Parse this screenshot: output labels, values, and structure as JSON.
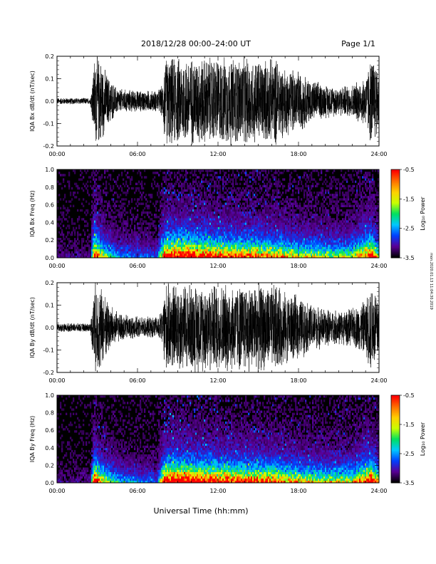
{
  "header": {
    "title": "2018/12/28  00:00–24:00 UT",
    "page": "Page 1/1"
  },
  "side_note": "mon.2020.01.13 11:04:30.2019",
  "xlabel": "Universal Time (hh:mm)",
  "colorbar_label": "Log₁₀ Power",
  "colors": {
    "trace": "#000000",
    "background": "#ffffff",
    "colormap": [
      "#000000",
      "#5a0096",
      "#0040ff",
      "#00c8ff",
      "#00e060",
      "#c8ff00",
      "#ffd000",
      "#ff7000",
      "#ff0000"
    ]
  },
  "chart_data": [
    {
      "type": "line",
      "title": "",
      "ylabel": "IQA Bx dB/dt (nT/sec)",
      "xlabel": "",
      "xlim": [
        0,
        24
      ],
      "ylim": [
        -0.2,
        0.2
      ],
      "x_ticks": [
        "00:00",
        "06:00",
        "12:00",
        "18:00",
        "24:00"
      ],
      "y_ticks": [
        "-0.2",
        "-0.1",
        "0.0",
        "0.1",
        "0.2"
      ],
      "grid": false,
      "activity_envelope": {
        "x_hours": [
          0,
          1,
          2.5,
          2.8,
          3.2,
          3.8,
          4.5,
          6,
          7.5,
          7.9,
          8.0,
          8.2,
          10,
          12,
          14,
          15,
          16,
          16.3,
          17,
          18,
          19,
          20,
          21,
          22,
          23,
          23.4,
          23.6,
          24
        ],
        "amplitude": [
          0.015,
          0.015,
          0.015,
          0.21,
          0.21,
          0.12,
          0.06,
          0.05,
          0.05,
          0.08,
          0.21,
          0.21,
          0.21,
          0.21,
          0.21,
          0.2,
          0.2,
          0.21,
          0.16,
          0.15,
          0.1,
          0.08,
          0.07,
          0.08,
          0.12,
          0.21,
          0.21,
          0.15
        ]
      }
    },
    {
      "type": "heatmap",
      "title": "",
      "ylabel": "IQA Bx Freq (Hz)",
      "xlabel": "",
      "xlim": [
        0,
        24
      ],
      "ylim": [
        0,
        1.0
      ],
      "x_ticks": [
        "00:00",
        "06:00",
        "12:00",
        "18:00",
        "24:00"
      ],
      "y_ticks": [
        "0.0",
        "0.2",
        "0.4",
        "0.6",
        "0.8",
        "1.0"
      ],
      "colorbar": {
        "label": "Log₁₀ Power",
        "range": [
          -3.5,
          -0.5
        ],
        "ticks": [
          "-0.5",
          "-1.5",
          "-2.5",
          "-3.5"
        ]
      },
      "activity_envelope": {
        "x_hours": [
          0,
          2.5,
          2.8,
          3.2,
          4.5,
          7.5,
          8.0,
          8.5,
          10,
          12,
          14,
          16,
          18,
          20,
          22,
          23.4,
          24
        ],
        "intensity": [
          0.05,
          0.05,
          0.9,
          0.5,
          0.2,
          0.15,
          0.75,
          0.85,
          0.8,
          0.7,
          0.65,
          0.6,
          0.45,
          0.4,
          0.4,
          0.8,
          0.4
        ]
      }
    },
    {
      "type": "line",
      "title": "",
      "ylabel": "IQA By dB/dt (nT/sec)",
      "xlabel": "",
      "xlim": [
        0,
        24
      ],
      "ylim": [
        -0.2,
        0.2
      ],
      "x_ticks": [
        "00:00",
        "06:00",
        "12:00",
        "18:00",
        "24:00"
      ],
      "y_ticks": [
        "-0.2",
        "-0.1",
        "0.0",
        "0.1",
        "0.2"
      ],
      "grid": false,
      "activity_envelope": {
        "x_hours": [
          0,
          1,
          2.5,
          2.8,
          3.2,
          3.8,
          4.5,
          6,
          7.5,
          7.9,
          8.0,
          8.2,
          10,
          12,
          14,
          15,
          16,
          16.3,
          17,
          18,
          19,
          20,
          21,
          22,
          23,
          23.4,
          23.6,
          24
        ],
        "amplitude": [
          0.02,
          0.02,
          0.02,
          0.21,
          0.21,
          0.13,
          0.07,
          0.05,
          0.05,
          0.09,
          0.21,
          0.21,
          0.21,
          0.21,
          0.21,
          0.21,
          0.2,
          0.21,
          0.17,
          0.15,
          0.11,
          0.09,
          0.08,
          0.09,
          0.13,
          0.21,
          0.21,
          0.16
        ]
      }
    },
    {
      "type": "heatmap",
      "title": "",
      "ylabel": "IQA By Freq (Hz)",
      "xlabel": "",
      "xlim": [
        0,
        24
      ],
      "ylim": [
        0,
        1.0
      ],
      "x_ticks": [
        "00:00",
        "06:00",
        "12:00",
        "18:00",
        "24:00"
      ],
      "y_ticks": [
        "0.0",
        "0.2",
        "0.4",
        "0.6",
        "0.8",
        "1.0"
      ],
      "colorbar": {
        "label": "Log₁₀ Power",
        "range": [
          -3.5,
          -0.5
        ],
        "ticks": [
          "-0.5",
          "-1.5",
          "-2.5",
          "-3.5"
        ]
      },
      "activity_envelope": {
        "x_hours": [
          0,
          2.5,
          2.8,
          3.2,
          4.5,
          7.5,
          8.0,
          8.5,
          10,
          12,
          14,
          16,
          18,
          20,
          22,
          23.4,
          24
        ],
        "intensity": [
          0.05,
          0.05,
          0.9,
          0.55,
          0.25,
          0.15,
          0.8,
          0.9,
          0.85,
          0.75,
          0.7,
          0.65,
          0.5,
          0.45,
          0.45,
          0.85,
          0.45
        ]
      }
    }
  ]
}
